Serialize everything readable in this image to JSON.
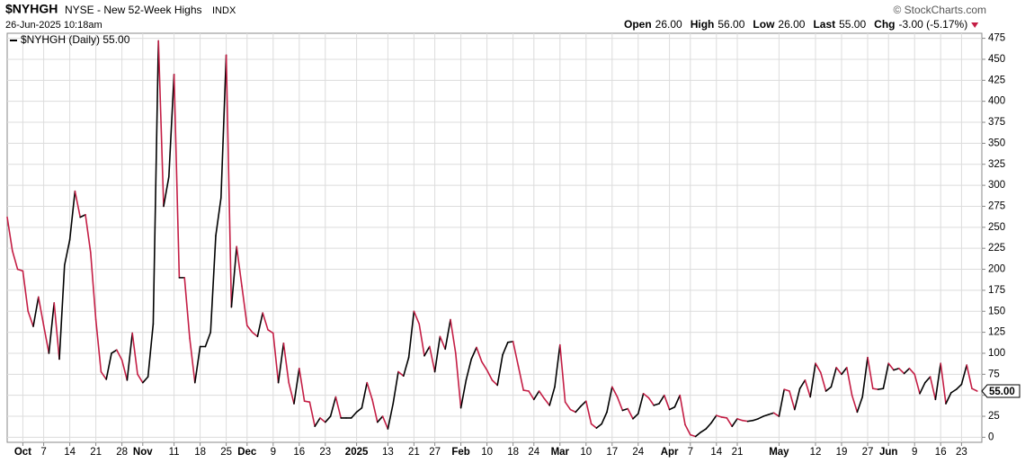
{
  "chart_data": {
    "type": "line",
    "symbol": "$NYHGH",
    "title": "NYSE - New 52-Week Highs",
    "exchange": "INDX",
    "timestamp": "26-Jun-2025 10:18am",
    "copyright": "© StockCharts.com",
    "quote": [
      {
        "label": "Open",
        "value": "26.00"
      },
      {
        "label": "High",
        "value": "56.00"
      },
      {
        "label": "Low",
        "value": "26.00"
      },
      {
        "label": "Last",
        "value": "55.00"
      },
      {
        "label": "Chg",
        "value": "-3.00 (-5.17%)"
      }
    ],
    "legend": "$NYHGH (Daily) 55.00",
    "last_marker": {
      "value": 55,
      "label": "55.00"
    },
    "up_color": "#000000",
    "down_color": "#c41e45",
    "grid": true,
    "ylim": [
      -6,
      481
    ],
    "yticks": [
      0,
      25,
      50,
      75,
      100,
      125,
      150,
      175,
      200,
      225,
      250,
      275,
      300,
      325,
      350,
      375,
      400,
      425,
      450,
      475
    ],
    "categories": [
      null,
      null,
      null,
      "Oct",
      null,
      null,
      null,
      "7",
      null,
      null,
      null,
      null,
      "14",
      null,
      null,
      null,
      null,
      "21",
      null,
      null,
      null,
      null,
      "28",
      null,
      null,
      null,
      "Nov",
      null,
      null,
      null,
      null,
      null,
      "11",
      null,
      null,
      null,
      null,
      "18",
      null,
      null,
      null,
      null,
      "25",
      null,
      null,
      null,
      "Dec",
      null,
      null,
      null,
      null,
      "9",
      null,
      null,
      null,
      null,
      "16",
      null,
      null,
      null,
      null,
      "23",
      null,
      null,
      null,
      null,
      null,
      "2025",
      null,
      null,
      null,
      null,
      null,
      "13",
      null,
      null,
      null,
      null,
      "21",
      null,
      null,
      null,
      "27",
      null,
      null,
      null,
      null,
      "Feb",
      null,
      null,
      null,
      null,
      "10",
      null,
      null,
      null,
      null,
      "18",
      null,
      null,
      null,
      "24",
      null,
      null,
      null,
      null,
      "Mar",
      null,
      null,
      null,
      null,
      "10",
      null,
      null,
      null,
      null,
      "17",
      null,
      null,
      null,
      null,
      "24",
      null,
      null,
      null,
      null,
      null,
      "Apr",
      null,
      null,
      null,
      "7",
      null,
      null,
      null,
      null,
      "14",
      null,
      null,
      null,
      "21",
      null,
      null,
      null,
      null,
      null,
      null,
      null,
      "May",
      null,
      null,
      null,
      null,
      null,
      null,
      "12",
      null,
      null,
      null,
      null,
      "19",
      null,
      null,
      null,
      null,
      "27",
      null,
      null,
      null,
      "Jun",
      null,
      null,
      null,
      null,
      "9",
      null,
      null,
      null,
      null,
      "16",
      null,
      null,
      null,
      "23",
      null,
      null,
      null
    ],
    "values": [
      262,
      222,
      200,
      198,
      150,
      132,
      167,
      133,
      100,
      160,
      93,
      205,
      235,
      293,
      262,
      265,
      220,
      140,
      78,
      69,
      100,
      104,
      92,
      68,
      124,
      75,
      65,
      72,
      135,
      472,
      275,
      310,
      432,
      190,
      190,
      118,
      65,
      108,
      108,
      125,
      240,
      285,
      455,
      155,
      227,
      180,
      133,
      125,
      120,
      148,
      128,
      124,
      65,
      112,
      65,
      40,
      82,
      43,
      42,
      13,
      23,
      18,
      25,
      48,
      23,
      23,
      23,
      30,
      35,
      65,
      45,
      18,
      25,
      10,
      40,
      78,
      73,
      95,
      150,
      135,
      97,
      108,
      78,
      120,
      105,
      140,
      100,
      35,
      68,
      93,
      107,
      90,
      80,
      68,
      62,
      98,
      113,
      114,
      85,
      56,
      55,
      45,
      55,
      46,
      38,
      60,
      110,
      42,
      33,
      30,
      37,
      43,
      16,
      11,
      16,
      30,
      60,
      48,
      32,
      34,
      22,
      28,
      52,
      47,
      38,
      40,
      50,
      33,
      36,
      50,
      15,
      3,
      1,
      6,
      10,
      17,
      26,
      24,
      23,
      13,
      22,
      20,
      19,
      20,
      22,
      25,
      27,
      29,
      25,
      57,
      55,
      33,
      58,
      68,
      48,
      88,
      77,
      55,
      60,
      83,
      75,
      83,
      50,
      30,
      48,
      95,
      58,
      57,
      58,
      88,
      80,
      82,
      76,
      82,
      75,
      52,
      65,
      72,
      45,
      88,
      40,
      53,
      57,
      63,
      86,
      58,
      55
    ]
  }
}
